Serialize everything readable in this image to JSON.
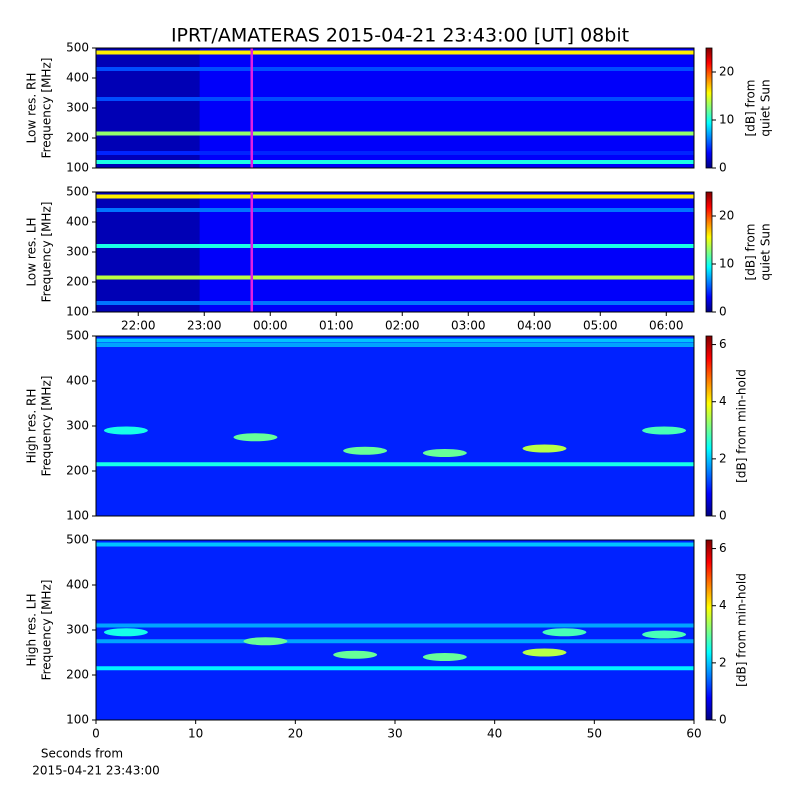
{
  "title": "IPRT/AMATERAS 2015-04-21 23:43:00 [UT]   08bit",
  "chart_data": [
    {
      "type": "spectrogram",
      "ylabel": [
        "Low res. RH",
        "Frequency [MHz]"
      ],
      "ylim": [
        100,
        500
      ],
      "yticks": [
        100,
        200,
        300,
        400,
        500
      ],
      "xlim": [
        21.36,
        30.42
      ],
      "clabel": [
        "[dB] from",
        "quiet Sun"
      ],
      "clim": [
        0,
        25
      ],
      "cticks": [
        0,
        10,
        20
      ],
      "background": 3,
      "dark_until": 22.93,
      "dark_value": 1,
      "marker_x": 23.72,
      "marker_color": "#e020e0",
      "bands": {
        "frequencies": [
          485,
          430,
          330,
          215,
          150,
          120
        ],
        "values": [
          16,
          5,
          5,
          13,
          4,
          10
        ]
      }
    },
    {
      "type": "spectrogram",
      "ylabel": [
        "Low res. LH",
        "Frequency [MHz]"
      ],
      "ylim": [
        100,
        500
      ],
      "yticks": [
        100,
        200,
        300,
        400,
        500
      ],
      "xlim": [
        21.36,
        30.42
      ],
      "xticks": [
        {
          "value": 22,
          "label": "22:00"
        },
        {
          "value": 23,
          "label": "23:00"
        },
        {
          "value": 24,
          "label": "00:00"
        },
        {
          "value": 25,
          "label": "01:00"
        },
        {
          "value": 26,
          "label": "02:00"
        },
        {
          "value": 27,
          "label": "03:00"
        },
        {
          "value": 28,
          "label": "04:00"
        },
        {
          "value": 29,
          "label": "05:00"
        },
        {
          "value": 30,
          "label": "06:00"
        }
      ],
      "clabel": [
        "[dB] from",
        "quiet Sun"
      ],
      "clim": [
        0,
        25
      ],
      "cticks": [
        0,
        10,
        20
      ],
      "background": 3,
      "dark_until": 22.93,
      "dark_value": 1,
      "marker_x": 23.72,
      "marker_color": "#e020e0",
      "bands": {
        "frequencies": [
          485,
          440,
          320,
          215,
          130
        ],
        "values": [
          16,
          6,
          10,
          14,
          6
        ]
      }
    },
    {
      "type": "spectrogram",
      "ylabel": [
        "High res. RH",
        "Frequency [MHz]"
      ],
      "ylim": [
        100,
        500
      ],
      "yticks": [
        100,
        200,
        300,
        400,
        500
      ],
      "xlim": [
        0,
        60
      ],
      "clabel": [
        "[dB] from min-hold"
      ],
      "clim": [
        0,
        6.3
      ],
      "cticks": [
        0,
        2,
        4,
        6
      ],
      "background": 1,
      "bands": {
        "frequencies": [
          490,
          480,
          215
        ],
        "values": [
          2,
          1.8,
          2.5
        ]
      },
      "blobs": {
        "x": [
          3,
          16,
          27,
          35,
          45,
          57
        ],
        "y": [
          290,
          275,
          245,
          240,
          250,
          290
        ],
        "values": [
          2.5,
          3,
          3,
          3,
          3.5,
          2.8
        ]
      }
    },
    {
      "type": "spectrogram",
      "ylabel": [
        "High res. LH",
        "Frequency [MHz]"
      ],
      "ylim": [
        100,
        500
      ],
      "yticks": [
        100,
        200,
        300,
        400,
        500
      ],
      "xlim": [
        0,
        60
      ],
      "xticks": [
        0,
        10,
        20,
        30,
        40,
        50,
        60
      ],
      "xlabel": [
        "Seconds from",
        "2015-04-21 23:43:00"
      ],
      "clabel": [
        "[dB] from min-hold"
      ],
      "clim": [
        0,
        6.3
      ],
      "cticks": [
        0,
        2,
        4,
        6
      ],
      "background": 1,
      "bands": {
        "frequencies": [
          490,
          310,
          275,
          215
        ],
        "values": [
          2,
          1.8,
          1.8,
          2.3
        ]
      },
      "blobs": {
        "x": [
          3,
          17,
          26,
          35,
          45,
          47,
          57
        ],
        "y": [
          295,
          275,
          245,
          240,
          250,
          295,
          290
        ],
        "values": [
          2.5,
          3,
          3,
          3,
          3.5,
          2.8,
          2.8
        ]
      }
    }
  ]
}
